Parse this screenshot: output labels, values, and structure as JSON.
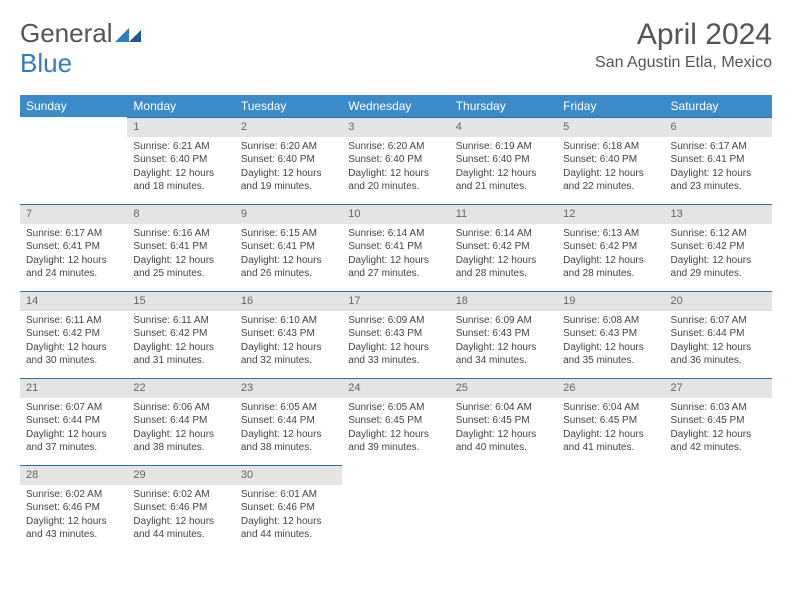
{
  "logo": {
    "text1": "General",
    "text2": "Blue"
  },
  "title": "April 2024",
  "location": "San Agustin Etla, Mexico",
  "colors": {
    "header_bg": "#3b8bc9",
    "header_text": "#ffffff",
    "daynum_bg": "#e4e4e4",
    "daynum_text": "#666666",
    "cell_border": "#2f6fa3",
    "body_text": "#444444",
    "title_text": "#555555",
    "logo_accent": "#2f7ec2",
    "page_bg": "#ffffff"
  },
  "weekdays": [
    "Sunday",
    "Monday",
    "Tuesday",
    "Wednesday",
    "Thursday",
    "Friday",
    "Saturday"
  ],
  "layout": {
    "columns": 7,
    "first_day_column_index": 1,
    "total_days": 30
  },
  "days": {
    "1": {
      "sunrise": "6:21 AM",
      "sunset": "6:40 PM",
      "daylight": "12 hours and 18 minutes."
    },
    "2": {
      "sunrise": "6:20 AM",
      "sunset": "6:40 PM",
      "daylight": "12 hours and 19 minutes."
    },
    "3": {
      "sunrise": "6:20 AM",
      "sunset": "6:40 PM",
      "daylight": "12 hours and 20 minutes."
    },
    "4": {
      "sunrise": "6:19 AM",
      "sunset": "6:40 PM",
      "daylight": "12 hours and 21 minutes."
    },
    "5": {
      "sunrise": "6:18 AM",
      "sunset": "6:40 PM",
      "daylight": "12 hours and 22 minutes."
    },
    "6": {
      "sunrise": "6:17 AM",
      "sunset": "6:41 PM",
      "daylight": "12 hours and 23 minutes."
    },
    "7": {
      "sunrise": "6:17 AM",
      "sunset": "6:41 PM",
      "daylight": "12 hours and 24 minutes."
    },
    "8": {
      "sunrise": "6:16 AM",
      "sunset": "6:41 PM",
      "daylight": "12 hours and 25 minutes."
    },
    "9": {
      "sunrise": "6:15 AM",
      "sunset": "6:41 PM",
      "daylight": "12 hours and 26 minutes."
    },
    "10": {
      "sunrise": "6:14 AM",
      "sunset": "6:41 PM",
      "daylight": "12 hours and 27 minutes."
    },
    "11": {
      "sunrise": "6:14 AM",
      "sunset": "6:42 PM",
      "daylight": "12 hours and 28 minutes."
    },
    "12": {
      "sunrise": "6:13 AM",
      "sunset": "6:42 PM",
      "daylight": "12 hours and 28 minutes."
    },
    "13": {
      "sunrise": "6:12 AM",
      "sunset": "6:42 PM",
      "daylight": "12 hours and 29 minutes."
    },
    "14": {
      "sunrise": "6:11 AM",
      "sunset": "6:42 PM",
      "daylight": "12 hours and 30 minutes."
    },
    "15": {
      "sunrise": "6:11 AM",
      "sunset": "6:42 PM",
      "daylight": "12 hours and 31 minutes."
    },
    "16": {
      "sunrise": "6:10 AM",
      "sunset": "6:43 PM",
      "daylight": "12 hours and 32 minutes."
    },
    "17": {
      "sunrise": "6:09 AM",
      "sunset": "6:43 PM",
      "daylight": "12 hours and 33 minutes."
    },
    "18": {
      "sunrise": "6:09 AM",
      "sunset": "6:43 PM",
      "daylight": "12 hours and 34 minutes."
    },
    "19": {
      "sunrise": "6:08 AM",
      "sunset": "6:43 PM",
      "daylight": "12 hours and 35 minutes."
    },
    "20": {
      "sunrise": "6:07 AM",
      "sunset": "6:44 PM",
      "daylight": "12 hours and 36 minutes."
    },
    "21": {
      "sunrise": "6:07 AM",
      "sunset": "6:44 PM",
      "daylight": "12 hours and 37 minutes."
    },
    "22": {
      "sunrise": "6:06 AM",
      "sunset": "6:44 PM",
      "daylight": "12 hours and 38 minutes."
    },
    "23": {
      "sunrise": "6:05 AM",
      "sunset": "6:44 PM",
      "daylight": "12 hours and 38 minutes."
    },
    "24": {
      "sunrise": "6:05 AM",
      "sunset": "6:45 PM",
      "daylight": "12 hours and 39 minutes."
    },
    "25": {
      "sunrise": "6:04 AM",
      "sunset": "6:45 PM",
      "daylight": "12 hours and 40 minutes."
    },
    "26": {
      "sunrise": "6:04 AM",
      "sunset": "6:45 PM",
      "daylight": "12 hours and 41 minutes."
    },
    "27": {
      "sunrise": "6:03 AM",
      "sunset": "6:45 PM",
      "daylight": "12 hours and 42 minutes."
    },
    "28": {
      "sunrise": "6:02 AM",
      "sunset": "6:46 PM",
      "daylight": "12 hours and 43 minutes."
    },
    "29": {
      "sunrise": "6:02 AM",
      "sunset": "6:46 PM",
      "daylight": "12 hours and 44 minutes."
    },
    "30": {
      "sunrise": "6:01 AM",
      "sunset": "6:46 PM",
      "daylight": "12 hours and 44 minutes."
    }
  },
  "labels": {
    "sunrise_prefix": "Sunrise: ",
    "sunset_prefix": "Sunset: ",
    "daylight_prefix": "Daylight: "
  }
}
